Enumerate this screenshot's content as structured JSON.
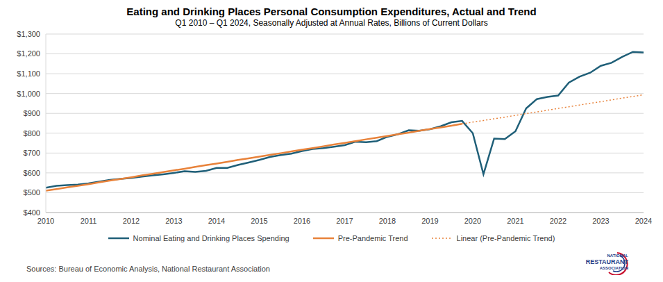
{
  "chart_data": {
    "type": "line",
    "title": "Eating and Drinking Places Personal Consumption Expenditures, Actual and Trend",
    "subtitle": "Q1 2010 – Q1 2024, Seasonally Adjusted at Annual Rates, Billions of Current Dollars",
    "x": [
      2010,
      2010.25,
      2010.5,
      2010.75,
      2011,
      2011.25,
      2011.5,
      2011.75,
      2012,
      2012.25,
      2012.5,
      2012.75,
      2013,
      2013.25,
      2013.5,
      2013.75,
      2014,
      2014.25,
      2014.5,
      2014.75,
      2015,
      2015.25,
      2015.5,
      2015.75,
      2016,
      2016.25,
      2016.5,
      2016.75,
      2017,
      2017.25,
      2017.5,
      2017.75,
      2018,
      2018.25,
      2018.5,
      2018.75,
      2019,
      2019.25,
      2019.5,
      2019.75,
      2020,
      2020.25,
      2020.5,
      2020.75,
      2021,
      2021.25,
      2021.5,
      2021.75,
      2022,
      2022.25,
      2022.5,
      2022.75,
      2023,
      2023.25,
      2023.5,
      2023.75,
      2024
    ],
    "series": [
      {
        "name": "Nominal Eating and Drinking Places Spending",
        "color": "#1f5f78",
        "line_style": "solid",
        "values": [
          525,
          535,
          538,
          541,
          547,
          556,
          565,
          570,
          574,
          581,
          587,
          593,
          600,
          608,
          605,
          610,
          625,
          625,
          640,
          652,
          665,
          680,
          690,
          697,
          710,
          720,
          725,
          732,
          740,
          757,
          755,
          760,
          782,
          795,
          815,
          812,
          820,
          835,
          855,
          862,
          800,
          593,
          773,
          770,
          810,
          925,
          972,
          983,
          990,
          1055,
          1085,
          1105,
          1140,
          1155,
          1185,
          1210,
          1207
        ]
      },
      {
        "name": "Pre-Pandemic Trend",
        "color": "#e8823a",
        "line_style": "solid",
        "values": [
          510,
          518,
          527,
          535,
          543,
          552,
          561,
          569,
          578,
          587,
          595,
          604,
          613,
          621,
          630,
          639,
          647,
          656,
          665,
          673,
          682,
          691,
          699,
          708,
          717,
          725,
          734,
          743,
          751,
          760,
          769,
          777,
          786,
          795,
          803,
          812,
          821,
          829,
          838,
          847,
          null,
          null,
          null,
          null,
          null,
          null,
          null,
          null,
          null,
          null,
          null,
          null,
          null,
          null,
          null,
          null,
          null
        ]
      },
      {
        "name": "Linear (Pre-Pandemic Trend)",
        "color": "#e8823a",
        "line_style": "dotted",
        "values": [
          null,
          null,
          null,
          null,
          null,
          null,
          null,
          null,
          null,
          null,
          null,
          null,
          null,
          null,
          null,
          null,
          null,
          null,
          null,
          null,
          null,
          null,
          null,
          null,
          null,
          null,
          null,
          null,
          null,
          null,
          null,
          null,
          null,
          null,
          null,
          null,
          null,
          null,
          null,
          847,
          856,
          864,
          873,
          881,
          890,
          899,
          907,
          916,
          925,
          933,
          942,
          951,
          959,
          968,
          977,
          985,
          994
        ]
      }
    ],
    "xlim": [
      2010,
      2024
    ],
    "xticks": [
      2010,
      2011,
      2012,
      2013,
      2014,
      2015,
      2016,
      2017,
      2018,
      2019,
      2020,
      2021,
      2022,
      2023,
      2024
    ],
    "ylim": [
      400,
      1300
    ],
    "yticks": [
      {
        "value": 400,
        "label": "$400"
      },
      {
        "value": 500,
        "label": "$500"
      },
      {
        "value": 600,
        "label": "$600"
      },
      {
        "value": 700,
        "label": "$700"
      },
      {
        "value": 800,
        "label": "$800"
      },
      {
        "value": 900,
        "label": "$900"
      },
      {
        "value": 1000,
        "label": "$1,000"
      },
      {
        "value": 1100,
        "label": "$1,100"
      },
      {
        "value": 1200,
        "label": "$1,200"
      },
      {
        "value": 1300,
        "label": "$1,300"
      }
    ],
    "grid": true,
    "legend": "bottom",
    "source": "Sources: Bureau of Economic Analysis, National Restaurant Association",
    "logo": [
      "NATIONAL",
      "RESTAURANT",
      "ASSOCIATION"
    ]
  }
}
